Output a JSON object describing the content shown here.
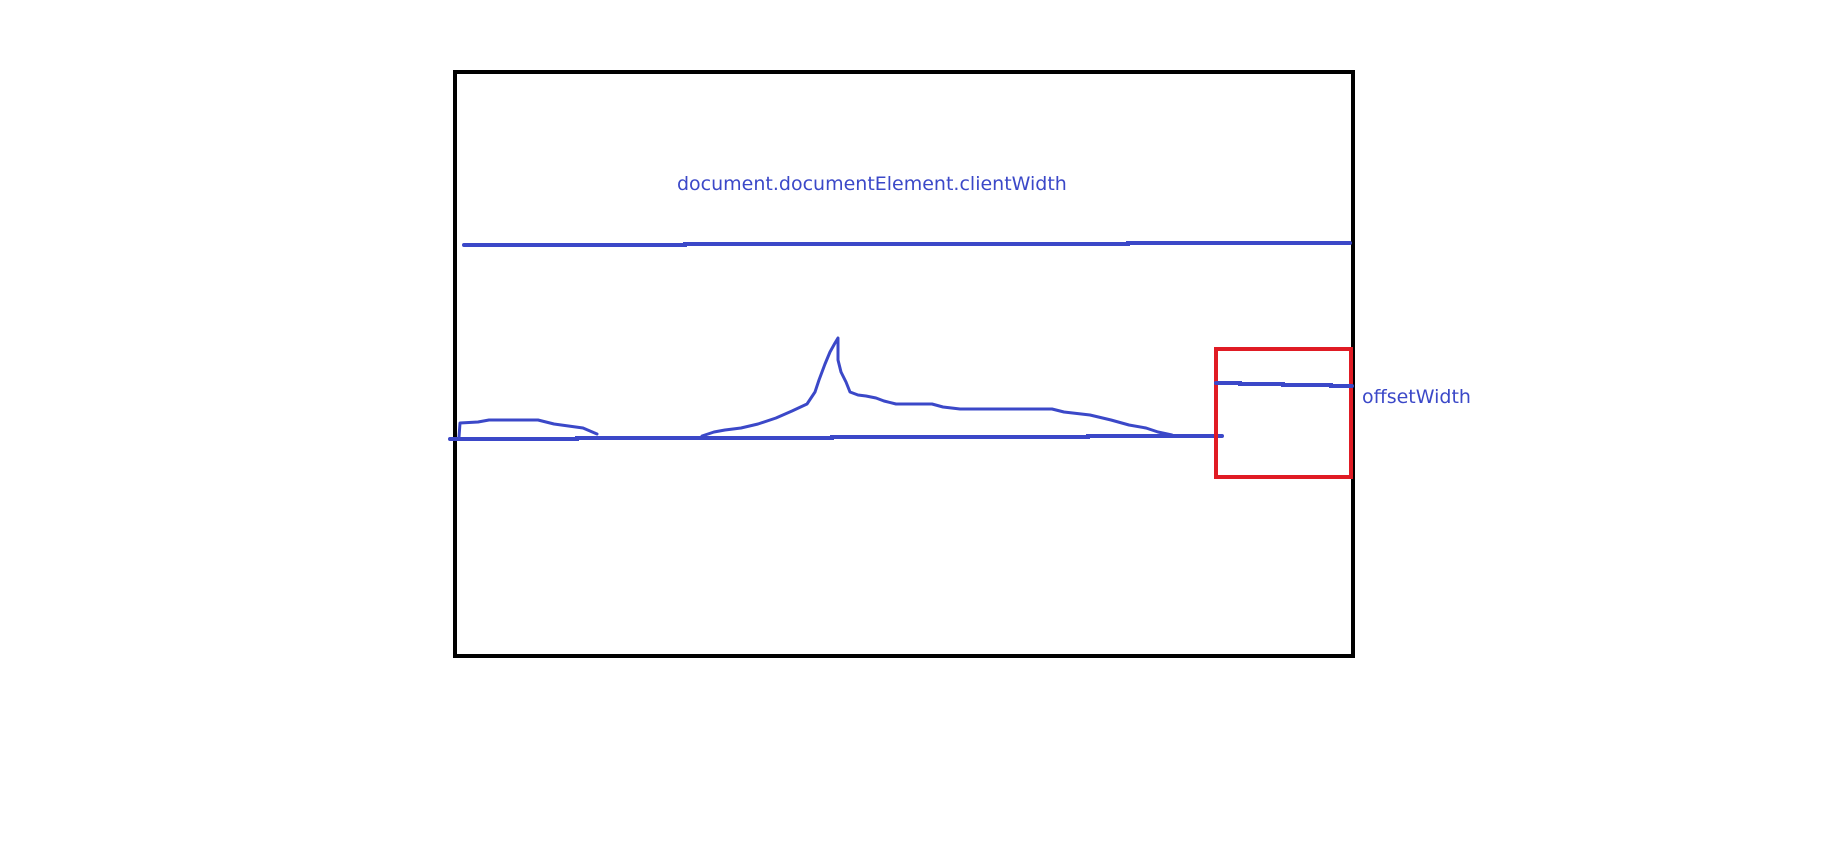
{
  "colors": {
    "frame": "#000000",
    "annotation": "#3b48c8",
    "highlight": "#e01b24",
    "background": "#ffffff"
  },
  "labels": {
    "top_label": "document.documentElement.clientWidth",
    "side_label": "offsetWidth"
  }
}
